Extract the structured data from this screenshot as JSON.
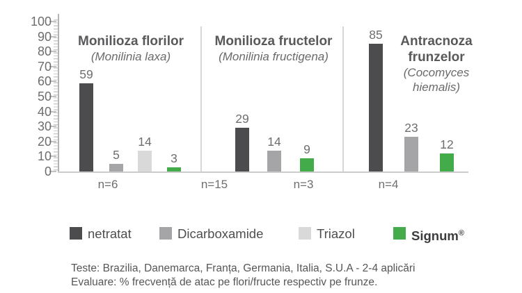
{
  "chart_data": {
    "type": "bar",
    "title": "",
    "xlabel": "",
    "ylabel": "",
    "ylim": [
      0,
      100
    ],
    "y_tick_labels": [
      "100",
      "90",
      "80",
      "70",
      "60",
      "50",
      "40",
      "30",
      "20",
      "10",
      "0"
    ],
    "grid": false,
    "legend_position": "bottom",
    "series_legend": [
      {
        "label": "netratat",
        "color": "#4c4c4e",
        "bold": false
      },
      {
        "label": "Dicarboxamide",
        "color": "#a5a5a7",
        "bold": false
      },
      {
        "label": "Triazol",
        "color": "#d9d9da",
        "bold": false
      },
      {
        "label": "Signum®",
        "color": "#44ab4a",
        "bold": true
      }
    ],
    "groups": [
      {
        "title": "Monilioza florilor",
        "subtitle": "(Monilinia laxa)",
        "bars": [
          {
            "series": "netratat",
            "value": 59
          },
          {
            "series": "Dicarboxamide",
            "value": 5
          },
          {
            "series": "Triazol",
            "value": 14
          },
          {
            "series": "Signum®",
            "value": 3
          }
        ],
        "n_labels": [
          "n=6"
        ]
      },
      {
        "title": "Monilioza fructelor",
        "subtitle": "(Monilinia fructigena)",
        "bars": [
          {
            "series": "netratat",
            "value": 29
          },
          {
            "series": "Dicarboxamide",
            "value": 14
          },
          {
            "series": "Signum®",
            "value": 9
          }
        ],
        "n_labels": [
          "n=15",
          "n=3"
        ]
      },
      {
        "title": "Antracnoza frunzelor",
        "subtitle": "(Cocomyces hiemalis)",
        "bars": [
          {
            "series": "netratat",
            "value": 85
          },
          {
            "series": "Dicarboxamide",
            "value": 23
          },
          {
            "series": "Signum®",
            "value": 12
          }
        ],
        "n_labels": [
          "n=4"
        ]
      }
    ]
  },
  "footnotes": {
    "tests": "Teste: Brazilia, Danemarca, Franța, Germania, Italia, S.U.A - 2-4 aplicări",
    "evaluation": "Evaluare: % frecvență de atac pe flori/fructe respectiv pe frunze."
  }
}
